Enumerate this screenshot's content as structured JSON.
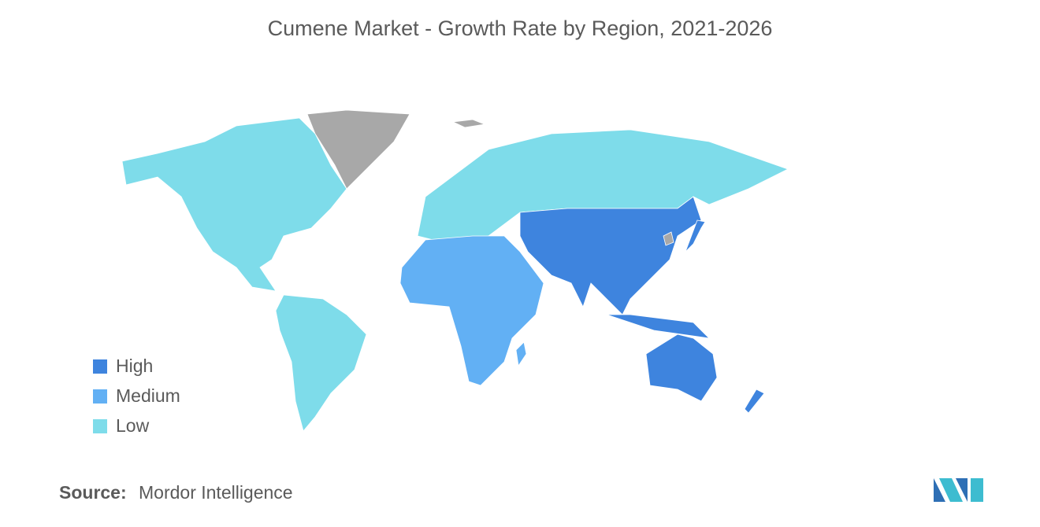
{
  "title": "Cumene Market - Growth Rate by Region, 2021-2026",
  "legend": {
    "items": [
      {
        "label": "High",
        "color": "#3e84de"
      },
      {
        "label": "Medium",
        "color": "#62b0f4"
      },
      {
        "label": "Low",
        "color": "#7edcea"
      }
    ]
  },
  "source": {
    "label": "Source:",
    "text": "Mordor Intelligence"
  }
}
